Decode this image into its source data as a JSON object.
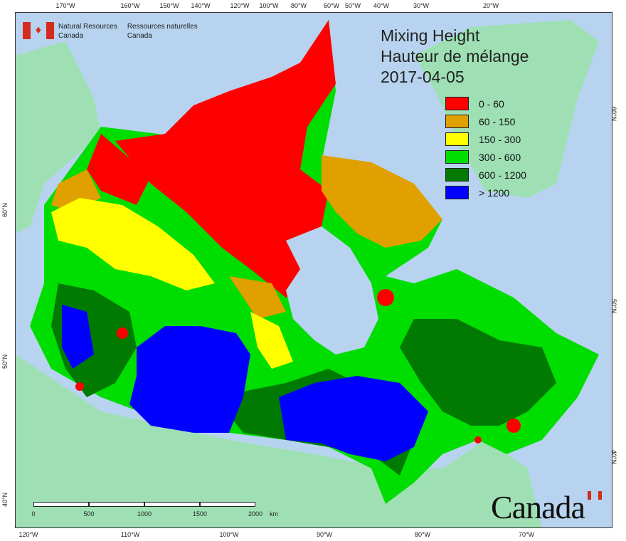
{
  "map": {
    "title_en": "Mixing Height",
    "title_fr": "Hauteur de mélange",
    "date": "2017-04-05"
  },
  "branding": {
    "org_en_line1": "Natural Resources",
    "org_en_line2": "Canada",
    "org_fr_line1": "Ressources naturelles",
    "org_fr_line2": "Canada",
    "wordmark": "Canada"
  },
  "legend": [
    {
      "label": "0 - 60",
      "color": "#ff0000"
    },
    {
      "label": "60 - 150",
      "color": "#e0a000"
    },
    {
      "label": "150 - 300",
      "color": "#ffff00"
    },
    {
      "label": "300 - 600",
      "color": "#00dd00"
    },
    {
      "label": "600 - 1200",
      "color": "#007a00"
    },
    {
      "label": "> 1200",
      "color": "#0000ff"
    }
  ],
  "graticule_top": [
    "170°W",
    "160°W",
    "150°W",
    "140°W",
    "120°W",
    "100°W",
    "80°W",
    "60°W",
    "50°W",
    "40°W",
    "30°W",
    "20°W"
  ],
  "graticule_bottom": [
    "120°W",
    "110°W",
    "100°W",
    "90°W",
    "80°W",
    "70°W"
  ],
  "graticule_left": [
    "60°N",
    "50°N",
    "40°N"
  ],
  "graticule_right": [
    "60°N",
    "50°N",
    "40°N"
  ],
  "scale": {
    "labels": [
      "0",
      "500",
      "1000",
      "1500",
      "2000"
    ],
    "unit": "km"
  },
  "colors": {
    "ocean": "#b7d3ef",
    "land_outside": "#9ee0b4"
  }
}
